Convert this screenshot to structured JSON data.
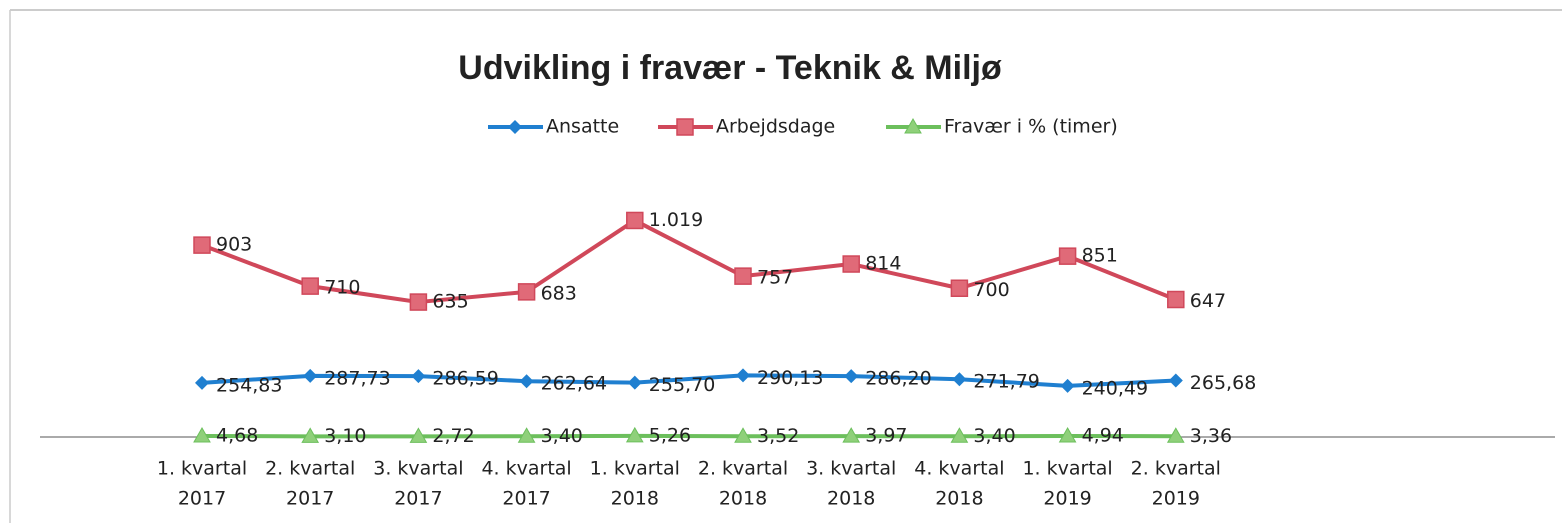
{
  "chart_data": {
    "type": "line",
    "title": "Udvikling i fravær -  Teknik & Miljø",
    "categories": [
      [
        "1. kvartal",
        "2017"
      ],
      [
        "2. kvartal",
        "2017"
      ],
      [
        "3. kvartal",
        "2017"
      ],
      [
        "4. kvartal",
        "2017"
      ],
      [
        "1. kvartal",
        "2018"
      ],
      [
        "2. kvartal",
        "2018"
      ],
      [
        "3. kvartal",
        "2018"
      ],
      [
        "4. kvartal",
        "2018"
      ],
      [
        "1. kvartal",
        "2019"
      ],
      [
        "2. kvartal",
        "2019"
      ]
    ],
    "series": [
      {
        "name": "Ansatte",
        "color": "#1f7fd0",
        "marker": "diamond",
        "values": [
          254.83,
          287.73,
          286.59,
          262.64,
          255.7,
          290.13,
          286.2,
          271.79,
          240.49,
          265.68
        ],
        "value_labels": [
          "254,83",
          "287,73",
          "286,59",
          "262,64",
          "255,70",
          "290,13",
          "286,20",
          "271,79",
          "240,49",
          "265,68"
        ]
      },
      {
        "name": "Arbejdsdage",
        "color": "#d0485a",
        "marker": "square",
        "values": [
          903,
          710,
          635,
          683,
          1019,
          757,
          814,
          700,
          851,
          647
        ],
        "value_labels": [
          "903",
          "710",
          "635",
          "683",
          "1.019",
          "757",
          "814",
          "700",
          "851",
          "647"
        ]
      },
      {
        "name": "Fravær i % (timer)",
        "color": "#6cbf5c",
        "marker": "triangle",
        "values": [
          4.68,
          3.1,
          2.72,
          3.4,
          5.26,
          3.52,
          3.97,
          3.4,
          4.94,
          3.36
        ],
        "value_labels": [
          "4,68",
          "3,10",
          "2,72",
          "3,40",
          "5,26",
          "3,52",
          "3,97",
          "3,40",
          "4,94",
          "3,36"
        ]
      }
    ],
    "ylim": [
      0,
      1200
    ],
    "legend": "top"
  }
}
